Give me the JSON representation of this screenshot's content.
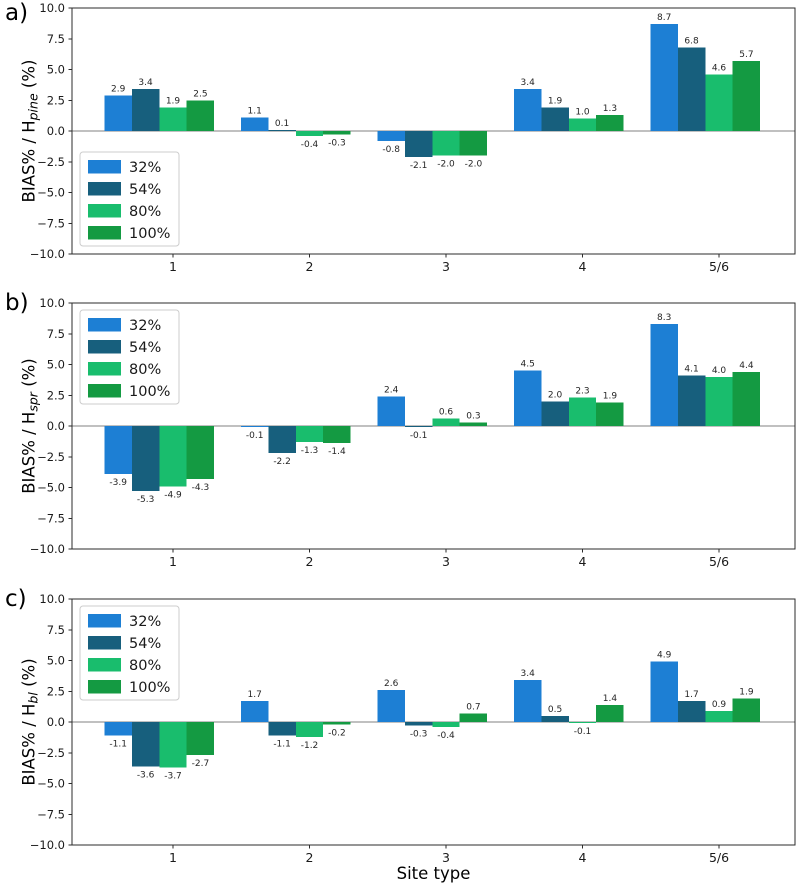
{
  "xlabel": "Site type",
  "chart_data": [
    {
      "type": "bar",
      "panel_label": "a)",
      "ylabel_prefix": "BIAS% / H",
      "ylabel_sub": "pine",
      "ylabel_suffix": "(%)",
      "categories": [
        "1",
        "2",
        "3",
        "4",
        "5/6"
      ],
      "series": [
        {
          "name": "32%",
          "color": "#1d7fd4",
          "values": [
            2.9,
            1.1,
            -0.8,
            3.4,
            8.7
          ]
        },
        {
          "name": "54%",
          "color": "#175f7d",
          "values": [
            3.4,
            0.1,
            -2.1,
            1.9,
            6.8
          ]
        },
        {
          "name": "80%",
          "color": "#19bd6d",
          "values": [
            1.9,
            -0.4,
            -2.0,
            1.0,
            4.6
          ]
        },
        {
          "name": "100%",
          "color": "#149a42",
          "values": [
            2.5,
            -0.3,
            -2.0,
            1.3,
            5.7
          ]
        }
      ],
      "ylim": [
        -10.0,
        10.0
      ],
      "ytick_step": 2.5,
      "grid": false,
      "legend_position": "lower-left"
    },
    {
      "type": "bar",
      "panel_label": "b)",
      "ylabel_prefix": "BIAS% / H",
      "ylabel_sub": "spr",
      "ylabel_suffix": "(%)",
      "categories": [
        "1",
        "2",
        "3",
        "4",
        "5/6"
      ],
      "series": [
        {
          "name": "32%",
          "color": "#1d7fd4",
          "values": [
            -3.9,
            -0.1,
            2.4,
            4.5,
            8.3
          ]
        },
        {
          "name": "54%",
          "color": "#175f7d",
          "values": [
            -5.3,
            -2.2,
            -0.1,
            2.0,
            4.1
          ]
        },
        {
          "name": "80%",
          "color": "#19bd6d",
          "values": [
            -4.9,
            -1.3,
            0.6,
            2.3,
            4.0
          ]
        },
        {
          "name": "100%",
          "color": "#149a42",
          "values": [
            -4.3,
            -1.4,
            0.3,
            1.9,
            4.4
          ]
        }
      ],
      "ylim": [
        -10.0,
        10.0
      ],
      "ytick_step": 2.5,
      "grid": false,
      "legend_position": "upper-left"
    },
    {
      "type": "bar",
      "panel_label": "c)",
      "ylabel_prefix": "BIAS% / H",
      "ylabel_sub": "bl",
      "ylabel_suffix": "(%)",
      "categories": [
        "1",
        "2",
        "3",
        "4",
        "5/6"
      ],
      "series": [
        {
          "name": "32%",
          "color": "#1d7fd4",
          "values": [
            -1.1,
            1.7,
            2.6,
            3.4,
            4.9
          ]
        },
        {
          "name": "54%",
          "color": "#175f7d",
          "values": [
            -3.6,
            -1.1,
            -0.3,
            0.5,
            1.7
          ]
        },
        {
          "name": "80%",
          "color": "#19bd6d",
          "values": [
            -3.7,
            -1.2,
            -0.4,
            -0.1,
            0.9
          ]
        },
        {
          "name": "100%",
          "color": "#149a42",
          "values": [
            -2.7,
            -0.2,
            0.7,
            1.4,
            1.9
          ]
        }
      ],
      "ylim": [
        -10.0,
        10.0
      ],
      "ytick_step": 2.5,
      "grid": false,
      "legend_position": "upper-left"
    }
  ],
  "axis": {
    "ytick_labels": [
      "10.0",
      "7.5",
      "5.0",
      "2.5",
      "0.0",
      "−2.5",
      "−5.0",
      "−7.5",
      "−10.0"
    ],
    "zero_line_color": "#808080",
    "spine_color": "#2b2b2b"
  }
}
